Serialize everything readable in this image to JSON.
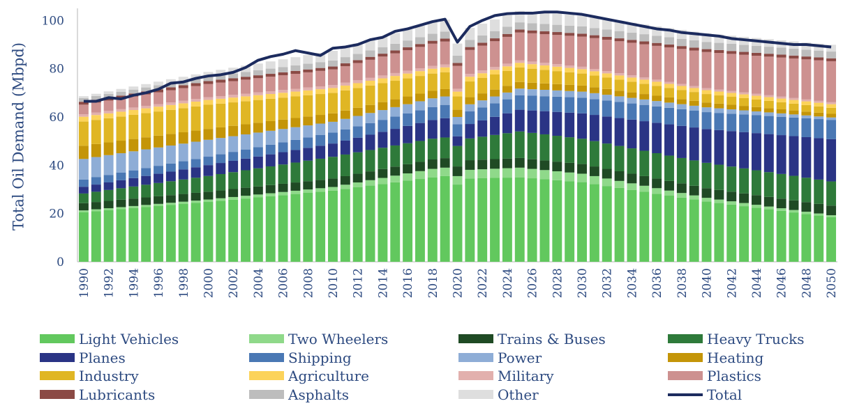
{
  "chart_data": {
    "type": "stacked-bar-with-line",
    "title": "",
    "xlabel": "",
    "ylabel": "Total Oil Demand (Mbpd)",
    "ylim": [
      0,
      105
    ],
    "yticks": [
      "0",
      "20",
      "40",
      "60",
      "80",
      "100"
    ],
    "ytick_values": [
      0,
      20,
      40,
      60,
      80,
      100
    ],
    "x_tick_labels": [
      "1990",
      "1992",
      "1994",
      "1996",
      "1998",
      "2000",
      "2002",
      "2004",
      "2006",
      "2008",
      "2010",
      "2012",
      "2014",
      "2016",
      "2018",
      "2020",
      "2022",
      "2024",
      "2026",
      "2028",
      "2030",
      "2032",
      "2034",
      "2036",
      "2038",
      "2040",
      "2042",
      "2044",
      "2046",
      "2048",
      "2050"
    ],
    "x_start": 1990,
    "x_end": 2050,
    "legend_position": "bottom",
    "series": [
      {
        "name": "Light Vehicles",
        "color": "#62c85e",
        "anchors": [
          [
            1990,
            20.5
          ],
          [
            2000,
            24.8
          ],
          [
            2010,
            29.5
          ],
          [
            2018,
            35
          ],
          [
            2019,
            35.5
          ],
          [
            2020,
            32
          ],
          [
            2021,
            34.5
          ],
          [
            2025,
            35
          ],
          [
            2030,
            33
          ],
          [
            2040,
            25
          ],
          [
            2050,
            18.5
          ]
        ]
      },
      {
        "name": "Two Wheelers",
        "color": "#8fd98a",
        "anchors": [
          [
            1990,
            0.8
          ],
          [
            2000,
            1
          ],
          [
            2010,
            1.5
          ],
          [
            2018,
            3.5
          ],
          [
            2020,
            3.5
          ],
          [
            2025,
            4
          ],
          [
            2030,
            3.5
          ],
          [
            2040,
            1.5
          ],
          [
            2050,
            0.8
          ]
        ]
      },
      {
        "name": "Trains & Buses",
        "color": "#1f4a24",
        "anchors": [
          [
            1990,
            3
          ],
          [
            2010,
            3.5
          ],
          [
            2020,
            4
          ],
          [
            2030,
            4
          ],
          [
            2040,
            4
          ],
          [
            2050,
            4
          ]
        ]
      },
      {
        "name": "Heavy Trucks",
        "color": "#2e7a3a",
        "anchors": [
          [
            1990,
            4
          ],
          [
            2000,
            6.5
          ],
          [
            2010,
            9
          ],
          [
            2020,
            8.5
          ],
          [
            2025,
            11
          ],
          [
            2030,
            10.5
          ],
          [
            2040,
            10.5
          ],
          [
            2050,
            10
          ]
        ]
      },
      {
        "name": "Planes",
        "color": "#2a3485",
        "anchors": [
          [
            1990,
            2.8
          ],
          [
            2000,
            4.5
          ],
          [
            2010,
            5.5
          ],
          [
            2019,
            8
          ],
          [
            2020,
            4
          ],
          [
            2021,
            6
          ],
          [
            2025,
            9
          ],
          [
            2030,
            10.5
          ],
          [
            2040,
            14
          ],
          [
            2050,
            17.5
          ]
        ]
      },
      {
        "name": "Shipping",
        "color": "#4a78b4",
        "anchors": [
          [
            1990,
            3
          ],
          [
            2000,
            3.5
          ],
          [
            2010,
            4.5
          ],
          [
            2019,
            5.5
          ],
          [
            2020,
            5
          ],
          [
            2025,
            6
          ],
          [
            2030,
            6.5
          ],
          [
            2040,
            7
          ],
          [
            2050,
            8
          ]
        ]
      },
      {
        "name": "Power",
        "color": "#8eadd6",
        "anchors": [
          [
            1990,
            8.5
          ],
          [
            2000,
            7
          ],
          [
            2010,
            4.5
          ],
          [
            2019,
            3.5
          ],
          [
            2020,
            3
          ],
          [
            2030,
            2.5
          ],
          [
            2040,
            2
          ],
          [
            2050,
            1
          ]
        ]
      },
      {
        "name": "Heating",
        "color": "#c49508",
        "anchors": [
          [
            1990,
            5.5
          ],
          [
            2000,
            4.5
          ],
          [
            2010,
            3.5
          ],
          [
            2020,
            3
          ],
          [
            2030,
            2.5
          ],
          [
            2040,
            2
          ],
          [
            2050,
            1.5
          ]
        ]
      },
      {
        "name": "Industry",
        "color": "#e0b624",
        "anchors": [
          [
            1990,
            10
          ],
          [
            2000,
            10
          ],
          [
            2010,
            8.5
          ],
          [
            2019,
            7
          ],
          [
            2020,
            5.5
          ],
          [
            2021,
            6.5
          ],
          [
            2025,
            6
          ],
          [
            2030,
            5
          ],
          [
            2040,
            3.5
          ],
          [
            2050,
            2.5
          ]
        ]
      },
      {
        "name": "Agriculture",
        "color": "#fcd35a",
        "anchors": [
          [
            1990,
            2
          ],
          [
            2000,
            2
          ],
          [
            2010,
            2
          ],
          [
            2020,
            2
          ],
          [
            2030,
            1.8
          ],
          [
            2040,
            1.6
          ],
          [
            2050,
            1.5
          ]
        ]
      },
      {
        "name": "Military",
        "color": "#e2b0ad",
        "anchors": [
          [
            1990,
            1
          ],
          [
            2010,
            1.2
          ],
          [
            2020,
            1.2
          ],
          [
            2030,
            1
          ],
          [
            2040,
            0.8
          ],
          [
            2050,
            0.8
          ]
        ]
      },
      {
        "name": "Plastics",
        "color": "#cd9190",
        "anchors": [
          [
            1990,
            4
          ],
          [
            2000,
            5.5
          ],
          [
            2010,
            6.5
          ],
          [
            2019,
            9.5
          ],
          [
            2020,
            9.5
          ],
          [
            2025,
            11.5
          ],
          [
            2030,
            12.5
          ],
          [
            2040,
            15
          ],
          [
            2050,
            17
          ]
        ]
      },
      {
        "name": "Lubricants",
        "color": "#8b4a45",
        "anchors": [
          [
            1990,
            1.2
          ],
          [
            2050,
            1.2
          ]
        ]
      },
      {
        "name": "Asphalts",
        "color": "#bdbdbd",
        "anchors": [
          [
            1990,
            1.5
          ],
          [
            2000,
            1.8
          ],
          [
            2010,
            2.5
          ],
          [
            2020,
            3
          ],
          [
            2030,
            3
          ],
          [
            2040,
            3
          ],
          [
            2050,
            2.8
          ]
        ]
      },
      {
        "name": "Other",
        "color": "#dedede",
        "anchors": [
          [
            1990,
            0.8
          ],
          [
            2000,
            2
          ],
          [
            2010,
            4
          ],
          [
            2020,
            5
          ],
          [
            2030,
            4.5
          ],
          [
            2040,
            3.5
          ],
          [
            2050,
            2.8
          ]
        ]
      }
    ],
    "total_line": {
      "name": "Total",
      "color": "#1c2b5e",
      "anchors": [
        [
          1990,
          66.5
        ],
        [
          1991,
          66.5
        ],
        [
          1992,
          68
        ],
        [
          1993,
          67.5
        ],
        [
          1994,
          69
        ],
        [
          1995,
          70
        ],
        [
          1996,
          71.5
        ],
        [
          1997,
          74
        ],
        [
          1998,
          74.5
        ],
        [
          1999,
          76
        ],
        [
          2000,
          77
        ],
        [
          2001,
          77.5
        ],
        [
          2002,
          78.5
        ],
        [
          2003,
          80.5
        ],
        [
          2004,
          83.5
        ],
        [
          2005,
          85
        ],
        [
          2006,
          86
        ],
        [
          2007,
          87.5
        ],
        [
          2008,
          86.5
        ],
        [
          2009,
          85.5
        ],
        [
          2010,
          88.5
        ],
        [
          2011,
          89
        ],
        [
          2012,
          90
        ],
        [
          2013,
          92
        ],
        [
          2014,
          93
        ],
        [
          2015,
          95.5
        ],
        [
          2016,
          96.5
        ],
        [
          2017,
          98
        ],
        [
          2018,
          99.5
        ],
        [
          2019,
          100.5
        ],
        [
          2020,
          91
        ],
        [
          2021,
          97.5
        ],
        [
          2022,
          100
        ],
        [
          2023,
          102
        ],
        [
          2024,
          102.8
        ],
        [
          2025,
          103
        ],
        [
          2026,
          103
        ],
        [
          2027,
          103.5
        ],
        [
          2028,
          103.5
        ],
        [
          2029,
          103
        ],
        [
          2030,
          102.5
        ],
        [
          2031,
          101.5
        ],
        [
          2032,
          100.5
        ],
        [
          2033,
          99.5
        ],
        [
          2034,
          98.5
        ],
        [
          2035,
          97.5
        ],
        [
          2036,
          96.5
        ],
        [
          2037,
          96
        ],
        [
          2038,
          95
        ],
        [
          2039,
          94.5
        ],
        [
          2040,
          94
        ],
        [
          2041,
          93.5
        ],
        [
          2042,
          92.5
        ],
        [
          2043,
          92
        ],
        [
          2044,
          91.5
        ],
        [
          2045,
          91
        ],
        [
          2046,
          90.5
        ],
        [
          2047,
          90
        ],
        [
          2048,
          90
        ],
        [
          2049,
          89.5
        ],
        [
          2050,
          89
        ]
      ]
    }
  }
}
